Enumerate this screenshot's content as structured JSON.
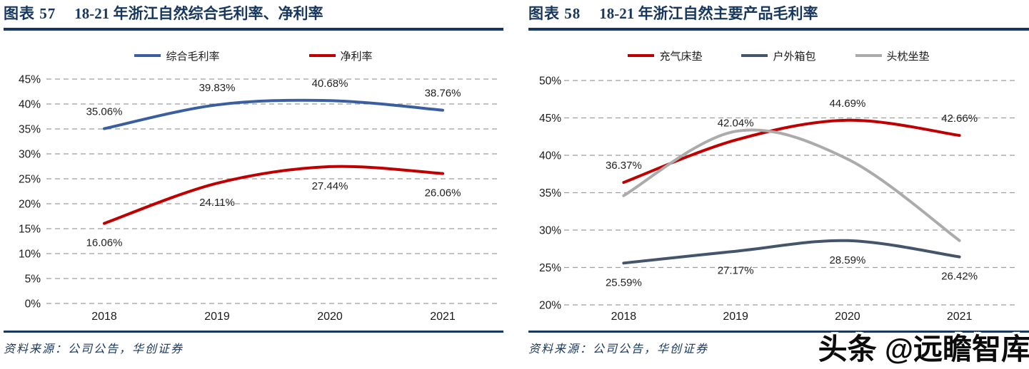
{
  "colors": {
    "navy": "#17375E",
    "grid": "#9E9E9E",
    "axis_text": "#1a1a1a",
    "gross_margin_blue": "#3A5FA0",
    "net_margin_red": "#C00000",
    "outdoor_bags_slate": "#44546A",
    "headrest_gray": "#ABABAB"
  },
  "figures": [
    {
      "label": "图表 57",
      "title": "18-21 年浙江自然综合毛利率、净利率",
      "source": "资料来源：公司公告，华创证券"
    },
    {
      "label": "图表 58",
      "title": "18-21 年浙江自然主要产品毛利率",
      "source": "资料来源：公司公告，华创证券"
    }
  ],
  "watermark": "头条 @远瞻智库",
  "chart_data": [
    {
      "type": "line",
      "title": "18-21 年浙江自然综合毛利率、净利率",
      "categories": [
        "2018",
        "2019",
        "2020",
        "2021"
      ],
      "series": [
        {
          "name": "综合毛利率",
          "color": "#3A5FA0",
          "values": [
            35.06,
            39.83,
            40.68,
            38.76
          ],
          "data_labels": [
            "35.06%",
            "39.83%",
            "40.68%",
            "38.76%"
          ],
          "label_position": "above"
        },
        {
          "name": "净利率",
          "color": "#C00000",
          "values": [
            16.06,
            24.11,
            27.44,
            26.06
          ],
          "data_labels": [
            "16.06%",
            "24.11%",
            "27.44%",
            "26.06%"
          ],
          "label_position": "below"
        }
      ],
      "ylim": [
        0,
        45
      ],
      "ytick_step": 5,
      "ytick_suffix": "%",
      "grid": "dashed-horizontal",
      "legend_position": "top",
      "smooth": true
    },
    {
      "type": "line",
      "title": "18-21 年浙江自然主要产品毛利率",
      "categories": [
        "2018",
        "2019",
        "2020",
        "2021"
      ],
      "series": [
        {
          "name": "充气床垫",
          "color": "#C00000",
          "values": [
            36.37,
            42.04,
            44.69,
            42.66
          ],
          "data_labels": [
            "36.37%",
            "42.04%",
            "44.69%",
            "42.66%"
          ],
          "label_position": "above"
        },
        {
          "name": "户外箱包",
          "color": "#44546A",
          "values": [
            25.59,
            27.17,
            28.59,
            26.42
          ],
          "data_labels": [
            "25.59%",
            "27.17%",
            "28.59%",
            "26.42%"
          ],
          "label_position": "below"
        },
        {
          "name": "头枕坐垫",
          "color": "#ABABAB",
          "values": [
            34.6,
            43.2,
            39.5,
            28.6
          ],
          "data_labels": null,
          "estimated": true,
          "label_position": "none"
        }
      ],
      "ylim": [
        20,
        50
      ],
      "ytick_step": 5,
      "ytick_suffix": "%",
      "grid": "dashed-horizontal",
      "legend_position": "top",
      "smooth": true
    }
  ]
}
